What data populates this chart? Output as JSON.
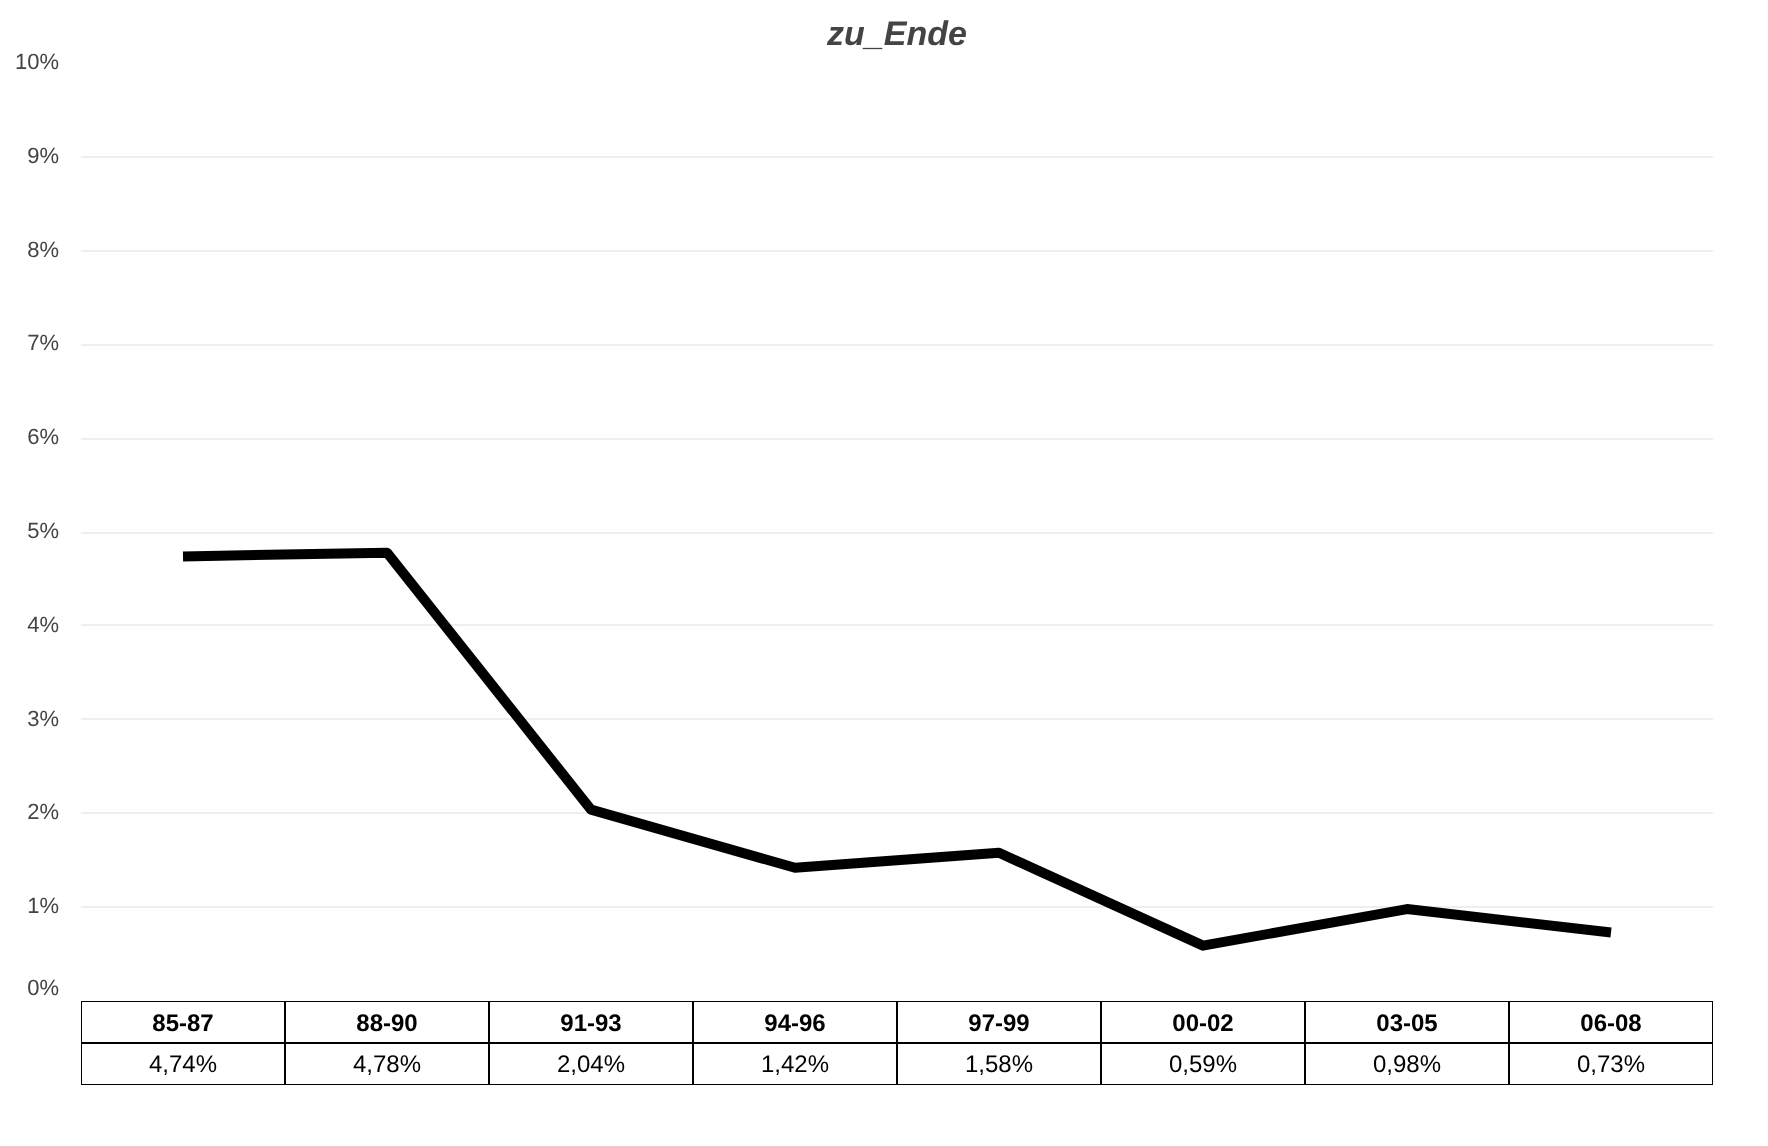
{
  "chart_data": {
    "type": "line",
    "title": "zu_Ende",
    "categories": [
      "85-87",
      "88-90",
      "91-93",
      "94-96",
      "97-99",
      "00-02",
      "03-05",
      "06-08"
    ],
    "values": [
      4.74,
      4.78,
      2.04,
      1.42,
      1.58,
      0.59,
      0.98,
      0.73
    ],
    "value_labels": [
      "4,74%",
      "4,78%",
      "2,04%",
      "1,42%",
      "1,58%",
      "0,59%",
      "0,98%",
      "0,73%"
    ],
    "color": "#000000",
    "ylim": [
      0,
      10
    ],
    "yticks": [
      {
        "value": 0,
        "label": "0%"
      },
      {
        "value": 1,
        "label": "1%"
      },
      {
        "value": 2,
        "label": "2%"
      },
      {
        "value": 3,
        "label": "3%"
      },
      {
        "value": 4,
        "label": "4%"
      },
      {
        "value": 5,
        "label": "5%"
      },
      {
        "value": 6,
        "label": "6%"
      },
      {
        "value": 7,
        "label": "7%"
      },
      {
        "value": 8,
        "label": "8%"
      },
      {
        "value": 9,
        "label": "9%"
      },
      {
        "value": 10,
        "label": "10%"
      }
    ],
    "grid": "y"
  }
}
